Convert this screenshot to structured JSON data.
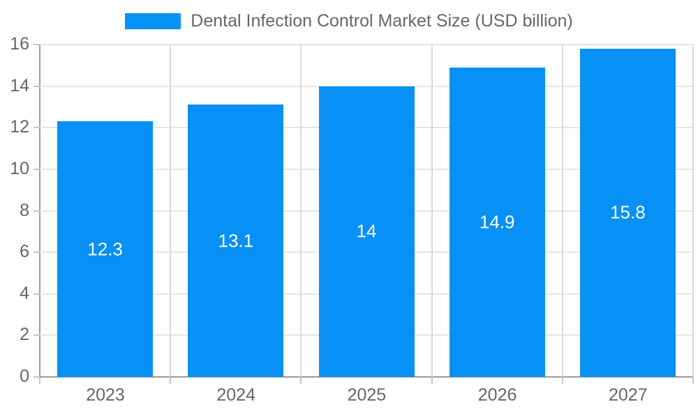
{
  "legend": {
    "label": "Dental Infection Control Market Size (USD billion)"
  },
  "chart_data": {
    "type": "bar",
    "title": "Dental Infection Control Market Size (USD billion)",
    "categories": [
      "2023",
      "2024",
      "2025",
      "2026",
      "2027"
    ],
    "values": [
      12.3,
      13.1,
      14,
      14.9,
      15.8
    ],
    "xlabel": "",
    "ylabel": "",
    "ylim": [
      0,
      16
    ],
    "ytick_step": 2,
    "yticks": [
      0,
      2,
      4,
      6,
      8,
      10,
      12,
      14,
      16
    ],
    "grid": true,
    "legend_position": "top",
    "value_labels_position": "inside-middle",
    "colors": {
      "bar": "#0790f5",
      "grid_horizontal": "#e5e5e5",
      "grid_vertical": "#d9d9d9",
      "axis": "#9b9b9b",
      "tick": "#c6c6c6",
      "text": "#666666",
      "bar_label": "#ffffff",
      "background": "#ffffff"
    }
  }
}
